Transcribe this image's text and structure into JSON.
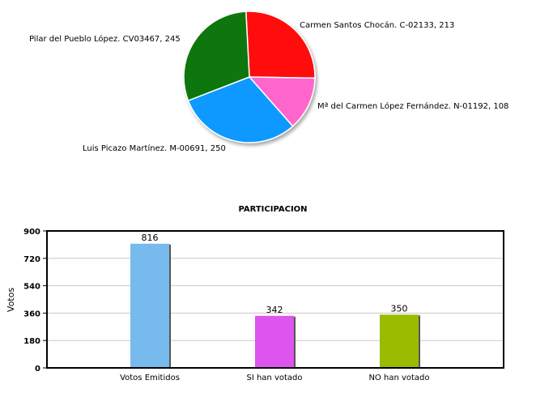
{
  "chart_data": [
    {
      "type": "pie",
      "slices": [
        {
          "label": "Carmen Santos Chocán. C-02133, 213",
          "value": 213,
          "color": "#ff1111"
        },
        {
          "label": "Mª del Carmen López Fernández. N-01192, 108",
          "value": 108,
          "color": "#ff66cc"
        },
        {
          "label": "Luis Picazo Martínez. M-00691, 250",
          "value": 250,
          "color": "#1199ff"
        },
        {
          "label": "Pilar del Pueblo López. CV03467, 245",
          "value": 245,
          "color": "#117711"
        }
      ]
    },
    {
      "type": "bar",
      "title": "PARTICIPACION",
      "ylabel": "Votos",
      "categories": [
        "Votos Emitidos",
        "SI han votado",
        "NO han votado"
      ],
      "values": [
        816,
        342,
        350
      ],
      "data_labels": [
        "816",
        "342",
        "350"
      ],
      "colors": [
        "#77bbee",
        "#dd55ee",
        "#99bb00"
      ],
      "ylim": [
        0,
        900
      ],
      "yticks": [
        "0",
        "180",
        "360",
        "540",
        "720",
        "900"
      ],
      "grid": true
    }
  ]
}
